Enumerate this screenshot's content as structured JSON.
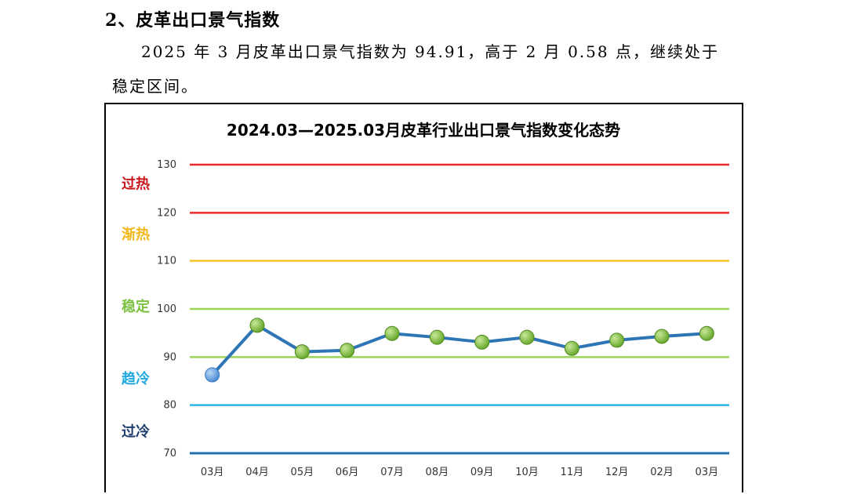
{
  "document": {
    "heading": "2、皮革出口景气指数",
    "paragraph_line1": "2025 年 3 月皮革出口景气指数为 94.91，高于 2 月 0.58 点，继续处于",
    "paragraph_line2": "稳定区间。"
  },
  "chart_data": {
    "type": "line",
    "title": "2024.03—2025.03月皮革行业出口景气指数变化态势",
    "categories": [
      "03月",
      "04月",
      "05月",
      "06月",
      "07月",
      "08月",
      "09月",
      "10月",
      "11月",
      "12月",
      "02月",
      "03月"
    ],
    "series": [
      {
        "values": [
          86.3,
          96.6,
          91.1,
          91.4,
          94.9,
          94.1,
          93.1,
          94.1,
          91.8,
          93.5,
          94.3,
          94.91
        ]
      }
    ],
    "ylim": [
      70,
      130
    ],
    "yticks": [
      70,
      80,
      90,
      100,
      110,
      120,
      130
    ],
    "reference_lines": [
      {
        "value": 130,
        "color": "#ee2a2a"
      },
      {
        "value": 120,
        "color": "#ee2a2a"
      },
      {
        "value": 110,
        "color": "#f6c42a"
      },
      {
        "value": 100,
        "color": "#9dd45a"
      },
      {
        "value": 90,
        "color": "#9dd45a"
      },
      {
        "value": 80,
        "color": "#27b6e6"
      },
      {
        "value": 70,
        "color": "#1f6fb2"
      }
    ],
    "zones": [
      {
        "label": "过热",
        "value": 126,
        "color": "#c8181e"
      },
      {
        "label": "渐热",
        "value": 115.5,
        "color": "#f2b81a"
      },
      {
        "label": "稳定",
        "value": 100.5,
        "color": "#7dc242"
      },
      {
        "label": "趋冷",
        "value": 85.5,
        "color": "#1fa9df"
      },
      {
        "label": "过冷",
        "value": 74.5,
        "color": "#1f3c6e"
      }
    ],
    "line_color": "#2e75b6",
    "marker_colors": {
      "first": "#4f8fd6",
      "rest": "#6aaa2e"
    },
    "grid": false
  }
}
